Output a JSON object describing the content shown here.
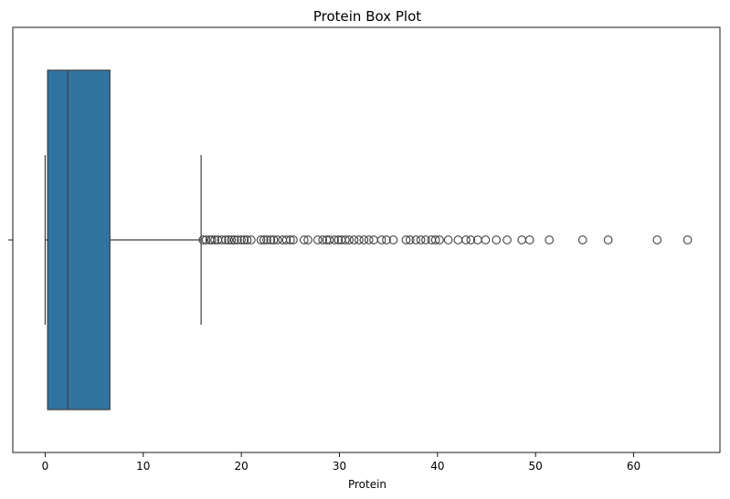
{
  "chart_data": {
    "type": "box",
    "title": "Protein Box Plot",
    "xlabel": "Protein",
    "ylabel": "",
    "xlim": [
      -3.3,
      68.8
    ],
    "xticks": [
      0,
      10,
      20,
      30,
      40,
      50,
      60
    ],
    "orientation": "horizontal",
    "grid": false,
    "box_color": "#3274a1",
    "line_color": "#3f3f3f",
    "box": {
      "whisker_low": 0,
      "q1": 0.25,
      "median": 2.3,
      "q3": 6.6,
      "whisker_high": 15.9
    },
    "outliers": [
      16.1,
      16.4,
      16.8,
      17.0,
      17.3,
      17.6,
      18.0,
      18.4,
      18.7,
      19.0,
      19.3,
      19.6,
      20.0,
      20.3,
      20.6,
      21.0,
      22.0,
      22.3,
      22.6,
      23.0,
      23.3,
      23.7,
      24.2,
      24.6,
      25.0,
      25.3,
      26.4,
      26.8,
      27.8,
      28.3,
      28.7,
      29.0,
      29.5,
      29.9,
      30.2,
      30.6,
      31.0,
      31.5,
      32.0,
      32.5,
      33.0,
      33.5,
      34.3,
      34.8,
      35.5,
      36.8,
      37.2,
      37.8,
      38.3,
      38.8,
      39.4,
      39.8,
      40.2,
      41.1,
      42.1,
      42.9,
      43.4,
      44.1,
      44.9,
      46.0,
      47.1,
      48.6,
      49.4,
      51.4,
      54.8,
      57.4,
      62.4,
      65.5
    ]
  }
}
